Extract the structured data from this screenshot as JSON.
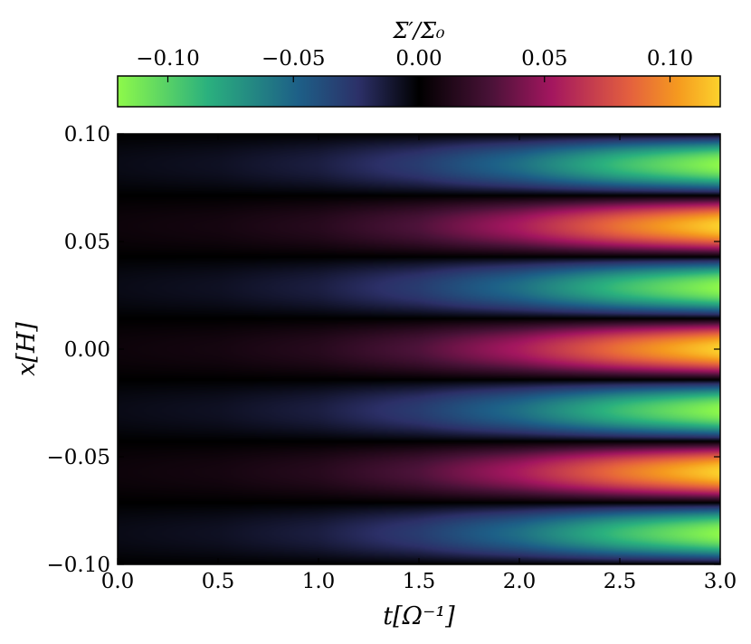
{
  "chart_data": {
    "type": "heatmap",
    "title": "",
    "xlabel": "t[Ω⁻¹]",
    "ylabel": "x[H]",
    "xlim": [
      0.0,
      3.0
    ],
    "ylim": [
      -0.1,
      0.1
    ],
    "x_ticks": [
      0.0,
      0.5,
      1.0,
      1.5,
      2.0,
      2.5,
      3.0
    ],
    "x_tick_labels": [
      "0.0",
      "0.5",
      "1.0",
      "1.5",
      "2.0",
      "2.5",
      "3.0"
    ],
    "y_ticks": [
      0.1,
      0.05,
      0.0,
      -0.05,
      -0.1
    ],
    "y_tick_labels": [
      "0.10",
      "0.05",
      "0.00",
      "−0.05",
      "−0.10"
    ],
    "colorbar": {
      "label": "Σ′/Σ₀",
      "orientation": "horizontal",
      "position": "top",
      "range": [
        -0.12,
        0.12
      ],
      "ticks": [
        -0.1,
        -0.05,
        0.0,
        0.05,
        0.1
      ],
      "tick_labels": [
        "−0.10",
        "−0.05",
        "0.00",
        "0.05",
        "0.10"
      ],
      "colormap": [
        {
          "v": 0.0,
          "color": "#8ef94a"
        },
        {
          "v": 0.15,
          "color": "#2ab07e"
        },
        {
          "v": 0.3,
          "color": "#1d5f87"
        },
        {
          "v": 0.4,
          "color": "#2c3068"
        },
        {
          "v": 0.5,
          "color": "#000000"
        },
        {
          "v": 0.62,
          "color": "#4a1238"
        },
        {
          "v": 0.72,
          "color": "#a3165f"
        },
        {
          "v": 0.85,
          "color": "#e4603e"
        },
        {
          "v": 0.93,
          "color": "#f59a1f"
        },
        {
          "v": 1.0,
          "color": "#fcd22c"
        }
      ]
    },
    "field": {
      "description_formula": "amplitude grows with t; sign alternates in x with period ~0.0571 H",
      "amplitude_at_t": [
        {
          "t": 0.0,
          "amp": 0.005
        },
        {
          "t": 0.5,
          "amp": 0.008
        },
        {
          "t": 1.0,
          "amp": 0.015
        },
        {
          "t": 1.5,
          "amp": 0.03
        },
        {
          "t": 2.0,
          "amp": 0.055
        },
        {
          "t": 2.5,
          "amp": 0.09
        },
        {
          "t": 3.0,
          "amp": 0.12
        }
      ],
      "wavelength": 0.0571,
      "phase_peak_x": 0.0
    },
    "grid": false
  }
}
